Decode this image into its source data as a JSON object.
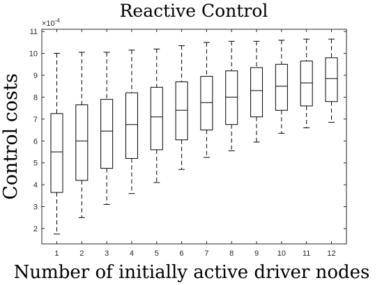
{
  "chart_data": {
    "type": "box",
    "title": "Reactive Control",
    "xlabel": "Number of initially active driver nodes",
    "ylabel": "Control costs",
    "y_exponent_label": "×10",
    "y_exponent_power": "-4",
    "categories": [
      "1",
      "2",
      "3",
      "4",
      "5",
      "6",
      "7",
      "8",
      "9",
      "10",
      "11",
      "12"
    ],
    "ylim": [
      1.3,
      11.1
    ],
    "yticks": [
      2,
      3,
      4,
      5,
      6,
      7,
      8,
      9,
      10,
      11
    ],
    "xlim": [
      0.4,
      12.6
    ],
    "grid": false,
    "boxes": [
      {
        "category": "1",
        "whisker_low": 1.75,
        "q1": 3.65,
        "median": 5.5,
        "q3": 7.25,
        "whisker_high": 10.0
      },
      {
        "category": "2",
        "whisker_low": 2.5,
        "q1": 4.2,
        "median": 6.0,
        "q3": 7.65,
        "whisker_high": 10.05
      },
      {
        "category": "3",
        "whisker_low": 3.1,
        "q1": 4.75,
        "median": 6.45,
        "q3": 7.9,
        "whisker_high": 10.05
      },
      {
        "category": "4",
        "whisker_low": 3.6,
        "q1": 5.2,
        "median": 6.75,
        "q3": 8.2,
        "whisker_high": 10.15
      },
      {
        "category": "5",
        "whisker_low": 4.1,
        "q1": 5.6,
        "median": 7.1,
        "q3": 8.45,
        "whisker_high": 10.2
      },
      {
        "category": "6",
        "whisker_low": 4.7,
        "q1": 6.05,
        "median": 7.4,
        "q3": 8.7,
        "whisker_high": 10.35
      },
      {
        "category": "7",
        "whisker_low": 5.25,
        "q1": 6.5,
        "median": 7.75,
        "q3": 8.95,
        "whisker_high": 10.5
      },
      {
        "category": "8",
        "whisker_low": 5.55,
        "q1": 6.75,
        "median": 8.0,
        "q3": 9.2,
        "whisker_high": 10.55
      },
      {
        "category": "9",
        "whisker_low": 5.95,
        "q1": 7.1,
        "median": 8.3,
        "q3": 9.35,
        "whisker_high": 10.55
      },
      {
        "category": "10",
        "whisker_low": 6.35,
        "q1": 7.4,
        "median": 8.5,
        "q3": 9.5,
        "whisker_high": 10.6
      },
      {
        "category": "11",
        "whisker_low": 6.6,
        "q1": 7.6,
        "median": 8.65,
        "q3": 9.65,
        "whisker_high": 10.65
      },
      {
        "category": "12",
        "whisker_low": 6.85,
        "q1": 7.8,
        "median": 8.85,
        "q3": 9.8,
        "whisker_high": 10.65
      }
    ]
  }
}
